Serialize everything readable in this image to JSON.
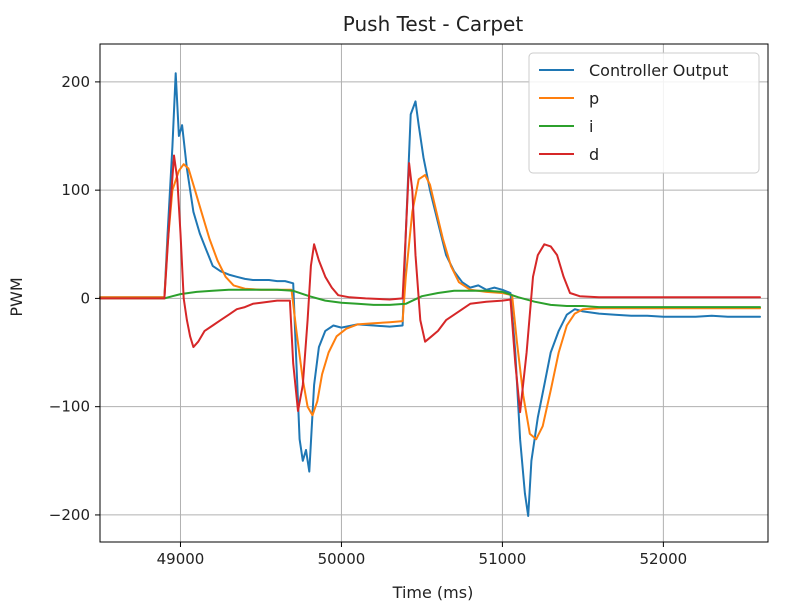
{
  "chart_data": {
    "type": "line",
    "title": "Push Test - Carpet",
    "xlabel": "Time (ms)",
    "ylabel": "PWM",
    "xlim": [
      48500,
      52650
    ],
    "ylim": [
      -225,
      235
    ],
    "x_ticks": [
      49000,
      50000,
      51000,
      52000
    ],
    "y_ticks": [
      200,
      100,
      0,
      -100,
      -200
    ],
    "x_tick_labels": [
      "49000",
      "50000",
      "51000",
      "52000"
    ],
    "y_tick_labels": [
      "200",
      "100",
      "0",
      "−100",
      "−200"
    ],
    "grid": true,
    "legend_position": "top-right",
    "series": [
      {
        "name": "Controller Output",
        "color": "#1f77b4",
        "points": [
          [
            48500,
            1
          ],
          [
            48650,
            1
          ],
          [
            48800,
            1
          ],
          [
            48900,
            1
          ],
          [
            48920,
            60
          ],
          [
            48950,
            140
          ],
          [
            48970,
            208
          ],
          [
            48990,
            150
          ],
          [
            49010,
            160
          ],
          [
            49040,
            120
          ],
          [
            49080,
            80
          ],
          [
            49120,
            60
          ],
          [
            49160,
            45
          ],
          [
            49200,
            30
          ],
          [
            49250,
            25
          ],
          [
            49300,
            22
          ],
          [
            49350,
            20
          ],
          [
            49400,
            18
          ],
          [
            49450,
            17
          ],
          [
            49500,
            17
          ],
          [
            49550,
            17
          ],
          [
            49600,
            16
          ],
          [
            49650,
            16
          ],
          [
            49700,
            14
          ],
          [
            49720,
            -60
          ],
          [
            49740,
            -130
          ],
          [
            49760,
            -150
          ],
          [
            49780,
            -140
          ],
          [
            49800,
            -160
          ],
          [
            49830,
            -80
          ],
          [
            49860,
            -45
          ],
          [
            49900,
            -30
          ],
          [
            49950,
            -25
          ],
          [
            50000,
            -27
          ],
          [
            50100,
            -24
          ],
          [
            50200,
            -25
          ],
          [
            50300,
            -26
          ],
          [
            50380,
            -25
          ],
          [
            50400,
            60
          ],
          [
            50430,
            170
          ],
          [
            50460,
            182
          ],
          [
            50480,
            160
          ],
          [
            50510,
            130
          ],
          [
            50550,
            100
          ],
          [
            50600,
            70
          ],
          [
            50650,
            40
          ],
          [
            50700,
            25
          ],
          [
            50750,
            15
          ],
          [
            50800,
            10
          ],
          [
            50850,
            12
          ],
          [
            50900,
            8
          ],
          [
            50950,
            10
          ],
          [
            51000,
            8
          ],
          [
            51050,
            5
          ],
          [
            51080,
            -50
          ],
          [
            51110,
            -130
          ],
          [
            51140,
            -180
          ],
          [
            51160,
            -201
          ],
          [
            51180,
            -150
          ],
          [
            51220,
            -110
          ],
          [
            51260,
            -80
          ],
          [
            51300,
            -50
          ],
          [
            51350,
            -30
          ],
          [
            51400,
            -15
          ],
          [
            51450,
            -10
          ],
          [
            51500,
            -12
          ],
          [
            51600,
            -14
          ],
          [
            51700,
            -15
          ],
          [
            51800,
            -16
          ],
          [
            51900,
            -16
          ],
          [
            52000,
            -17
          ],
          [
            52100,
            -17
          ],
          [
            52200,
            -17
          ],
          [
            52300,
            -16
          ],
          [
            52400,
            -17
          ],
          [
            52500,
            -17
          ],
          [
            52600,
            -17
          ]
        ]
      },
      {
        "name": "p",
        "color": "#ff7f0e",
        "points": [
          [
            48500,
            1
          ],
          [
            48900,
            1
          ],
          [
            48920,
            50
          ],
          [
            48950,
            100
          ],
          [
            48990,
            118
          ],
          [
            49020,
            124
          ],
          [
            49050,
            120
          ],
          [
            49090,
            100
          ],
          [
            49130,
            80
          ],
          [
            49180,
            55
          ],
          [
            49230,
            35
          ],
          [
            49280,
            20
          ],
          [
            49330,
            12
          ],
          [
            49400,
            9
          ],
          [
            49500,
            8
          ],
          [
            49600,
            8
          ],
          [
            49690,
            8
          ],
          [
            49720,
            -30
          ],
          [
            49760,
            -75
          ],
          [
            49790,
            -100
          ],
          [
            49820,
            -108
          ],
          [
            49850,
            -95
          ],
          [
            49880,
            -70
          ],
          [
            49920,
            -50
          ],
          [
            49970,
            -35
          ],
          [
            50030,
            -28
          ],
          [
            50100,
            -24
          ],
          [
            50200,
            -23
          ],
          [
            50300,
            -22
          ],
          [
            50380,
            -21
          ],
          [
            50400,
            20
          ],
          [
            50440,
            80
          ],
          [
            50480,
            110
          ],
          [
            50520,
            114
          ],
          [
            50550,
            105
          ],
          [
            50590,
            80
          ],
          [
            50630,
            55
          ],
          [
            50680,
            30
          ],
          [
            50730,
            15
          ],
          [
            50800,
            8
          ],
          [
            50900,
            6
          ],
          [
            51000,
            5
          ],
          [
            51060,
            3
          ],
          [
            51090,
            -40
          ],
          [
            51130,
            -90
          ],
          [
            51170,
            -125
          ],
          [
            51210,
            -130
          ],
          [
            51250,
            -118
          ],
          [
            51300,
            -85
          ],
          [
            51350,
            -50
          ],
          [
            51400,
            -25
          ],
          [
            51450,
            -14
          ],
          [
            51500,
            -10
          ],
          [
            51600,
            -9
          ],
          [
            51800,
            -9
          ],
          [
            52000,
            -9
          ],
          [
            52200,
            -9
          ],
          [
            52400,
            -9
          ],
          [
            52600,
            -9
          ]
        ]
      },
      {
        "name": "i",
        "color": "#2ca02c",
        "points": [
          [
            48500,
            0
          ],
          [
            48900,
            0
          ],
          [
            48950,
            2
          ],
          [
            49000,
            4
          ],
          [
            49100,
            6
          ],
          [
            49200,
            7
          ],
          [
            49300,
            8
          ],
          [
            49400,
            8
          ],
          [
            49500,
            8
          ],
          [
            49600,
            8
          ],
          [
            49700,
            7
          ],
          [
            49800,
            2
          ],
          [
            49900,
            -2
          ],
          [
            50000,
            -4
          ],
          [
            50100,
            -5
          ],
          [
            50200,
            -6
          ],
          [
            50300,
            -6
          ],
          [
            50400,
            -5
          ],
          [
            50500,
            2
          ],
          [
            50600,
            5
          ],
          [
            50700,
            7
          ],
          [
            50800,
            7
          ],
          [
            50900,
            7
          ],
          [
            51000,
            6
          ],
          [
            51100,
            1
          ],
          [
            51200,
            -3
          ],
          [
            51300,
            -6
          ],
          [
            51400,
            -7
          ],
          [
            51500,
            -7
          ],
          [
            51600,
            -8
          ],
          [
            51800,
            -8
          ],
          [
            52000,
            -8
          ],
          [
            52200,
            -8
          ],
          [
            52400,
            -8
          ],
          [
            52600,
            -8
          ]
        ]
      },
      {
        "name": "d",
        "color": "#d62728",
        "points": [
          [
            48500,
            0
          ],
          [
            48900,
            0
          ],
          [
            48930,
            70
          ],
          [
            48960,
            132
          ],
          [
            48980,
            110
          ],
          [
            49000,
            60
          ],
          [
            49020,
            0
          ],
          [
            49040,
            -20
          ],
          [
            49060,
            -35
          ],
          [
            49080,
            -45
          ],
          [
            49110,
            -40
          ],
          [
            49150,
            -30
          ],
          [
            49200,
            -25
          ],
          [
            49250,
            -20
          ],
          [
            49300,
            -15
          ],
          [
            49350,
            -10
          ],
          [
            49400,
            -8
          ],
          [
            49450,
            -5
          ],
          [
            49500,
            -4
          ],
          [
            49600,
            -2
          ],
          [
            49680,
            -2
          ],
          [
            49700,
            -60
          ],
          [
            49730,
            -104
          ],
          [
            49760,
            -80
          ],
          [
            49790,
            -20
          ],
          [
            49810,
            30
          ],
          [
            49830,
            50
          ],
          [
            49860,
            35
          ],
          [
            49900,
            20
          ],
          [
            49940,
            10
          ],
          [
            49980,
            3
          ],
          [
            50050,
            1
          ],
          [
            50150,
            0
          ],
          [
            50300,
            -1
          ],
          [
            50380,
            0
          ],
          [
            50400,
            60
          ],
          [
            50420,
            125
          ],
          [
            50440,
            100
          ],
          [
            50460,
            40
          ],
          [
            50490,
            -20
          ],
          [
            50520,
            -40
          ],
          [
            50560,
            -35
          ],
          [
            50600,
            -30
          ],
          [
            50650,
            -20
          ],
          [
            50700,
            -15
          ],
          [
            50800,
            -5
          ],
          [
            50900,
            -3
          ],
          [
            51000,
            -2
          ],
          [
            51050,
            -1
          ],
          [
            51080,
            -60
          ],
          [
            51110,
            -105
          ],
          [
            51150,
            -50
          ],
          [
            51190,
            20
          ],
          [
            51220,
            40
          ],
          [
            51260,
            50
          ],
          [
            51300,
            48
          ],
          [
            51340,
            40
          ],
          [
            51380,
            20
          ],
          [
            51420,
            5
          ],
          [
            51480,
            2
          ],
          [
            51600,
            1
          ],
          [
            51800,
            1
          ],
          [
            52000,
            1
          ],
          [
            52200,
            1
          ],
          [
            52400,
            1
          ],
          [
            52600,
            1
          ]
        ]
      }
    ]
  }
}
